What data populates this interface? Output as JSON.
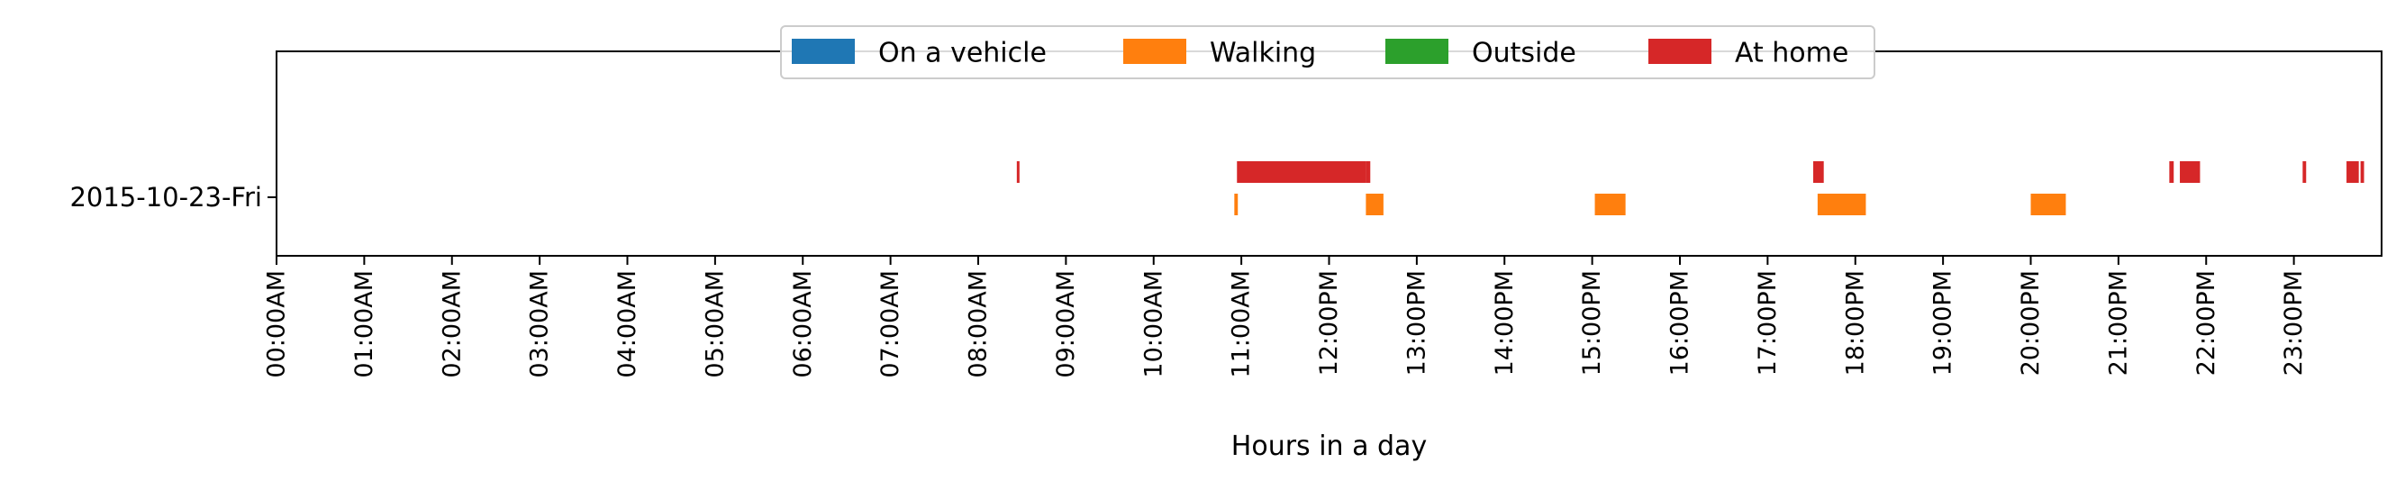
{
  "chart_data": {
    "type": "timeline",
    "title": "",
    "xlabel": "Hours in a day",
    "ylabel": "",
    "xlim": [
      0,
      24
    ],
    "x_ticks": [
      {
        "hour": 0,
        "label": "00:00AM"
      },
      {
        "hour": 1,
        "label": "01:00AM"
      },
      {
        "hour": 2,
        "label": "02:00AM"
      },
      {
        "hour": 3,
        "label": "03:00AM"
      },
      {
        "hour": 4,
        "label": "04:00AM"
      },
      {
        "hour": 5,
        "label": "05:00AM"
      },
      {
        "hour": 6,
        "label": "06:00AM"
      },
      {
        "hour": 7,
        "label": "07:00AM"
      },
      {
        "hour": 8,
        "label": "08:00AM"
      },
      {
        "hour": 9,
        "label": "09:00AM"
      },
      {
        "hour": 10,
        "label": "10:00AM"
      },
      {
        "hour": 11,
        "label": "11:00AM"
      },
      {
        "hour": 12,
        "label": "12:00PM"
      },
      {
        "hour": 13,
        "label": "13:00PM"
      },
      {
        "hour": 14,
        "label": "14:00PM"
      },
      {
        "hour": 15,
        "label": "15:00PM"
      },
      {
        "hour": 16,
        "label": "16:00PM"
      },
      {
        "hour": 17,
        "label": "17:00PM"
      },
      {
        "hour": 18,
        "label": "18:00PM"
      },
      {
        "hour": 19,
        "label": "19:00PM"
      },
      {
        "hour": 20,
        "label": "20:00PM"
      },
      {
        "hour": 21,
        "label": "21:00PM"
      },
      {
        "hour": 22,
        "label": "22:00PM"
      },
      {
        "hour": 23,
        "label": "23:00PM"
      }
    ],
    "y_categories": [
      "2015-10-23-Fri"
    ],
    "grid": false,
    "legend_position": "top-center",
    "series": [
      {
        "name": "On a vehicle",
        "color": "#1f77b4",
        "intervals": []
      },
      {
        "name": "Walking",
        "color": "#ff7f0e",
        "intervals": [
          [
            10.92,
            10.96
          ],
          [
            12.42,
            12.62
          ],
          [
            15.03,
            15.38
          ],
          [
            17.57,
            18.12
          ],
          [
            20.0,
            20.4
          ]
        ]
      },
      {
        "name": "Outside",
        "color": "#2ca02c",
        "intervals": []
      },
      {
        "name": "At home",
        "color": "#d62728",
        "intervals": [
          [
            8.44,
            8.47
          ],
          [
            10.95,
            12.42
          ],
          [
            12.42,
            12.47
          ],
          [
            17.52,
            17.64
          ],
          [
            21.58,
            21.63
          ],
          [
            21.7,
            21.93
          ],
          [
            23.1,
            23.14
          ],
          [
            23.6,
            23.74
          ],
          [
            23.76,
            23.8
          ]
        ]
      }
    ]
  }
}
